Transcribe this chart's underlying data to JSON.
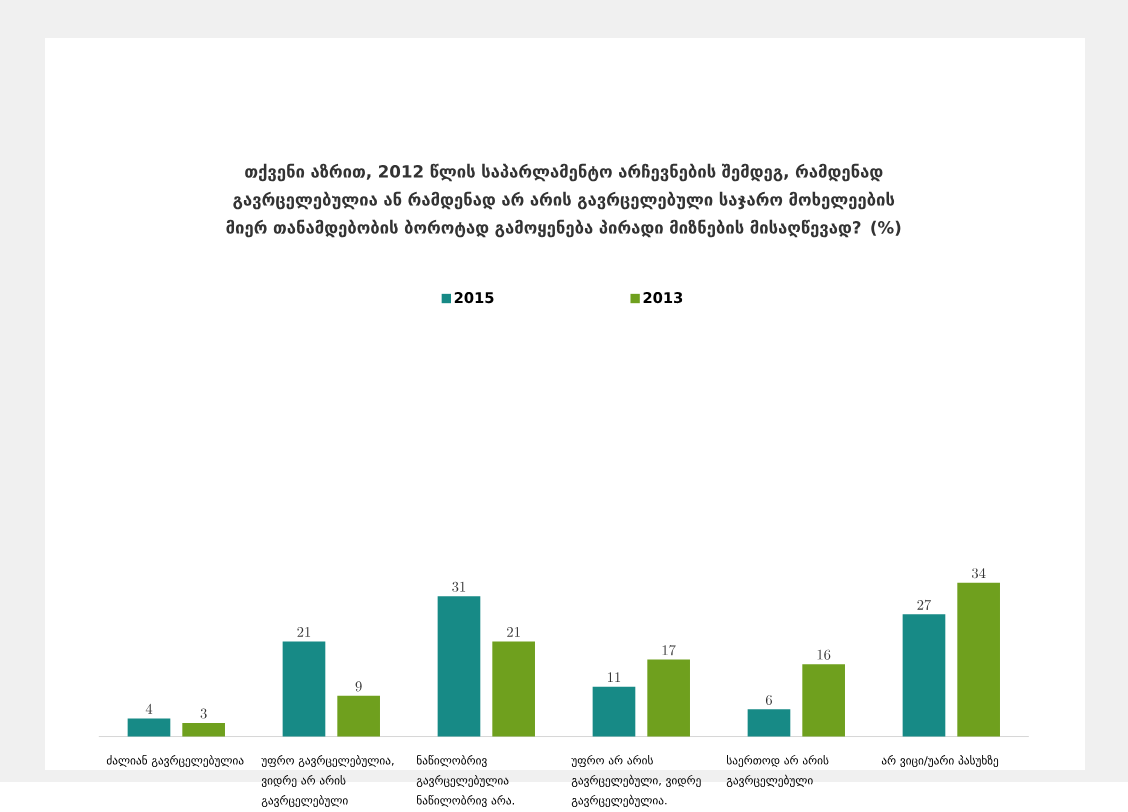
{
  "chart_data": {
    "type": "bar",
    "title": "თქვენი აზრით, 2012 წლის საპარლამენტო არჩევნების შემდეგ, რამდენად გავრცელებულია ან რამდენად არ არის გავრცელებული საჯარო მოხელეების მიერ თანამდებობის ბოროტად გამოყენება პირადი მიზნების მისაღწევად? (%)",
    "categories": [
      "ძალიან გავრცელებულია",
      "უფრო გავრცელებულია, ვიდრე არ არის გავრცელებული",
      "ნაწილობრივ გავრცელებულია ნაწილობრივ არა.",
      "უფრო არ არის გავრცელებული, ვიდრე გავრცელებულია.",
      "საერთოდ არ არის გავრცელებული",
      "არ ვიცი/უარი პასუხზე"
    ],
    "series": [
      {
        "name": "2015",
        "color": "#178a86",
        "values": [
          4,
          21,
          31,
          11,
          6,
          27
        ]
      },
      {
        "name": "2013",
        "color": "#6fa01e",
        "values": [
          3,
          9,
          21,
          17,
          16,
          34
        ]
      }
    ],
    "data_labels": true,
    "legend": "top",
    "grid": false
  }
}
